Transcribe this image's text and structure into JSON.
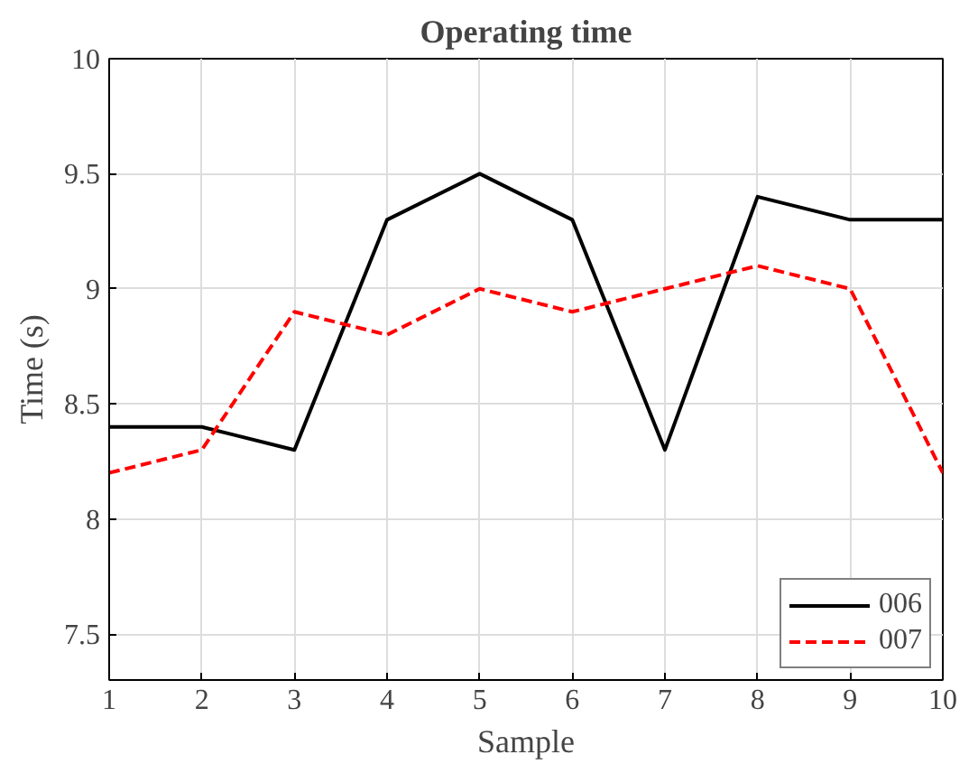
{
  "chart_data": {
    "type": "line",
    "title": "Operating time",
    "xlabel": "Sample",
    "ylabel": "Time (s)",
    "x": [
      1,
      2,
      3,
      4,
      5,
      6,
      7,
      8,
      9,
      10
    ],
    "series": [
      {
        "name": "006",
        "color": "#000000",
        "line_style": "solid",
        "values": [
          8.4,
          8.4,
          8.3,
          9.3,
          9.5,
          9.3,
          8.3,
          9.4,
          9.3,
          9.3
        ]
      },
      {
        "name": "007",
        "color": "#ff0000",
        "line_style": "dashed",
        "values": [
          8.2,
          8.3,
          8.9,
          8.8,
          9.0,
          8.9,
          9.0,
          9.1,
          9.0,
          8.2
        ]
      }
    ],
    "xlim": [
      1,
      10
    ],
    "ylim": [
      7.3,
      10
    ],
    "xticks": [
      1,
      2,
      3,
      4,
      5,
      6,
      7,
      8,
      9,
      10
    ],
    "yticks": [
      7.5,
      8,
      8.5,
      9,
      9.5,
      10
    ],
    "grid": true,
    "legend": "bottom right",
    "marker": "none"
  }
}
